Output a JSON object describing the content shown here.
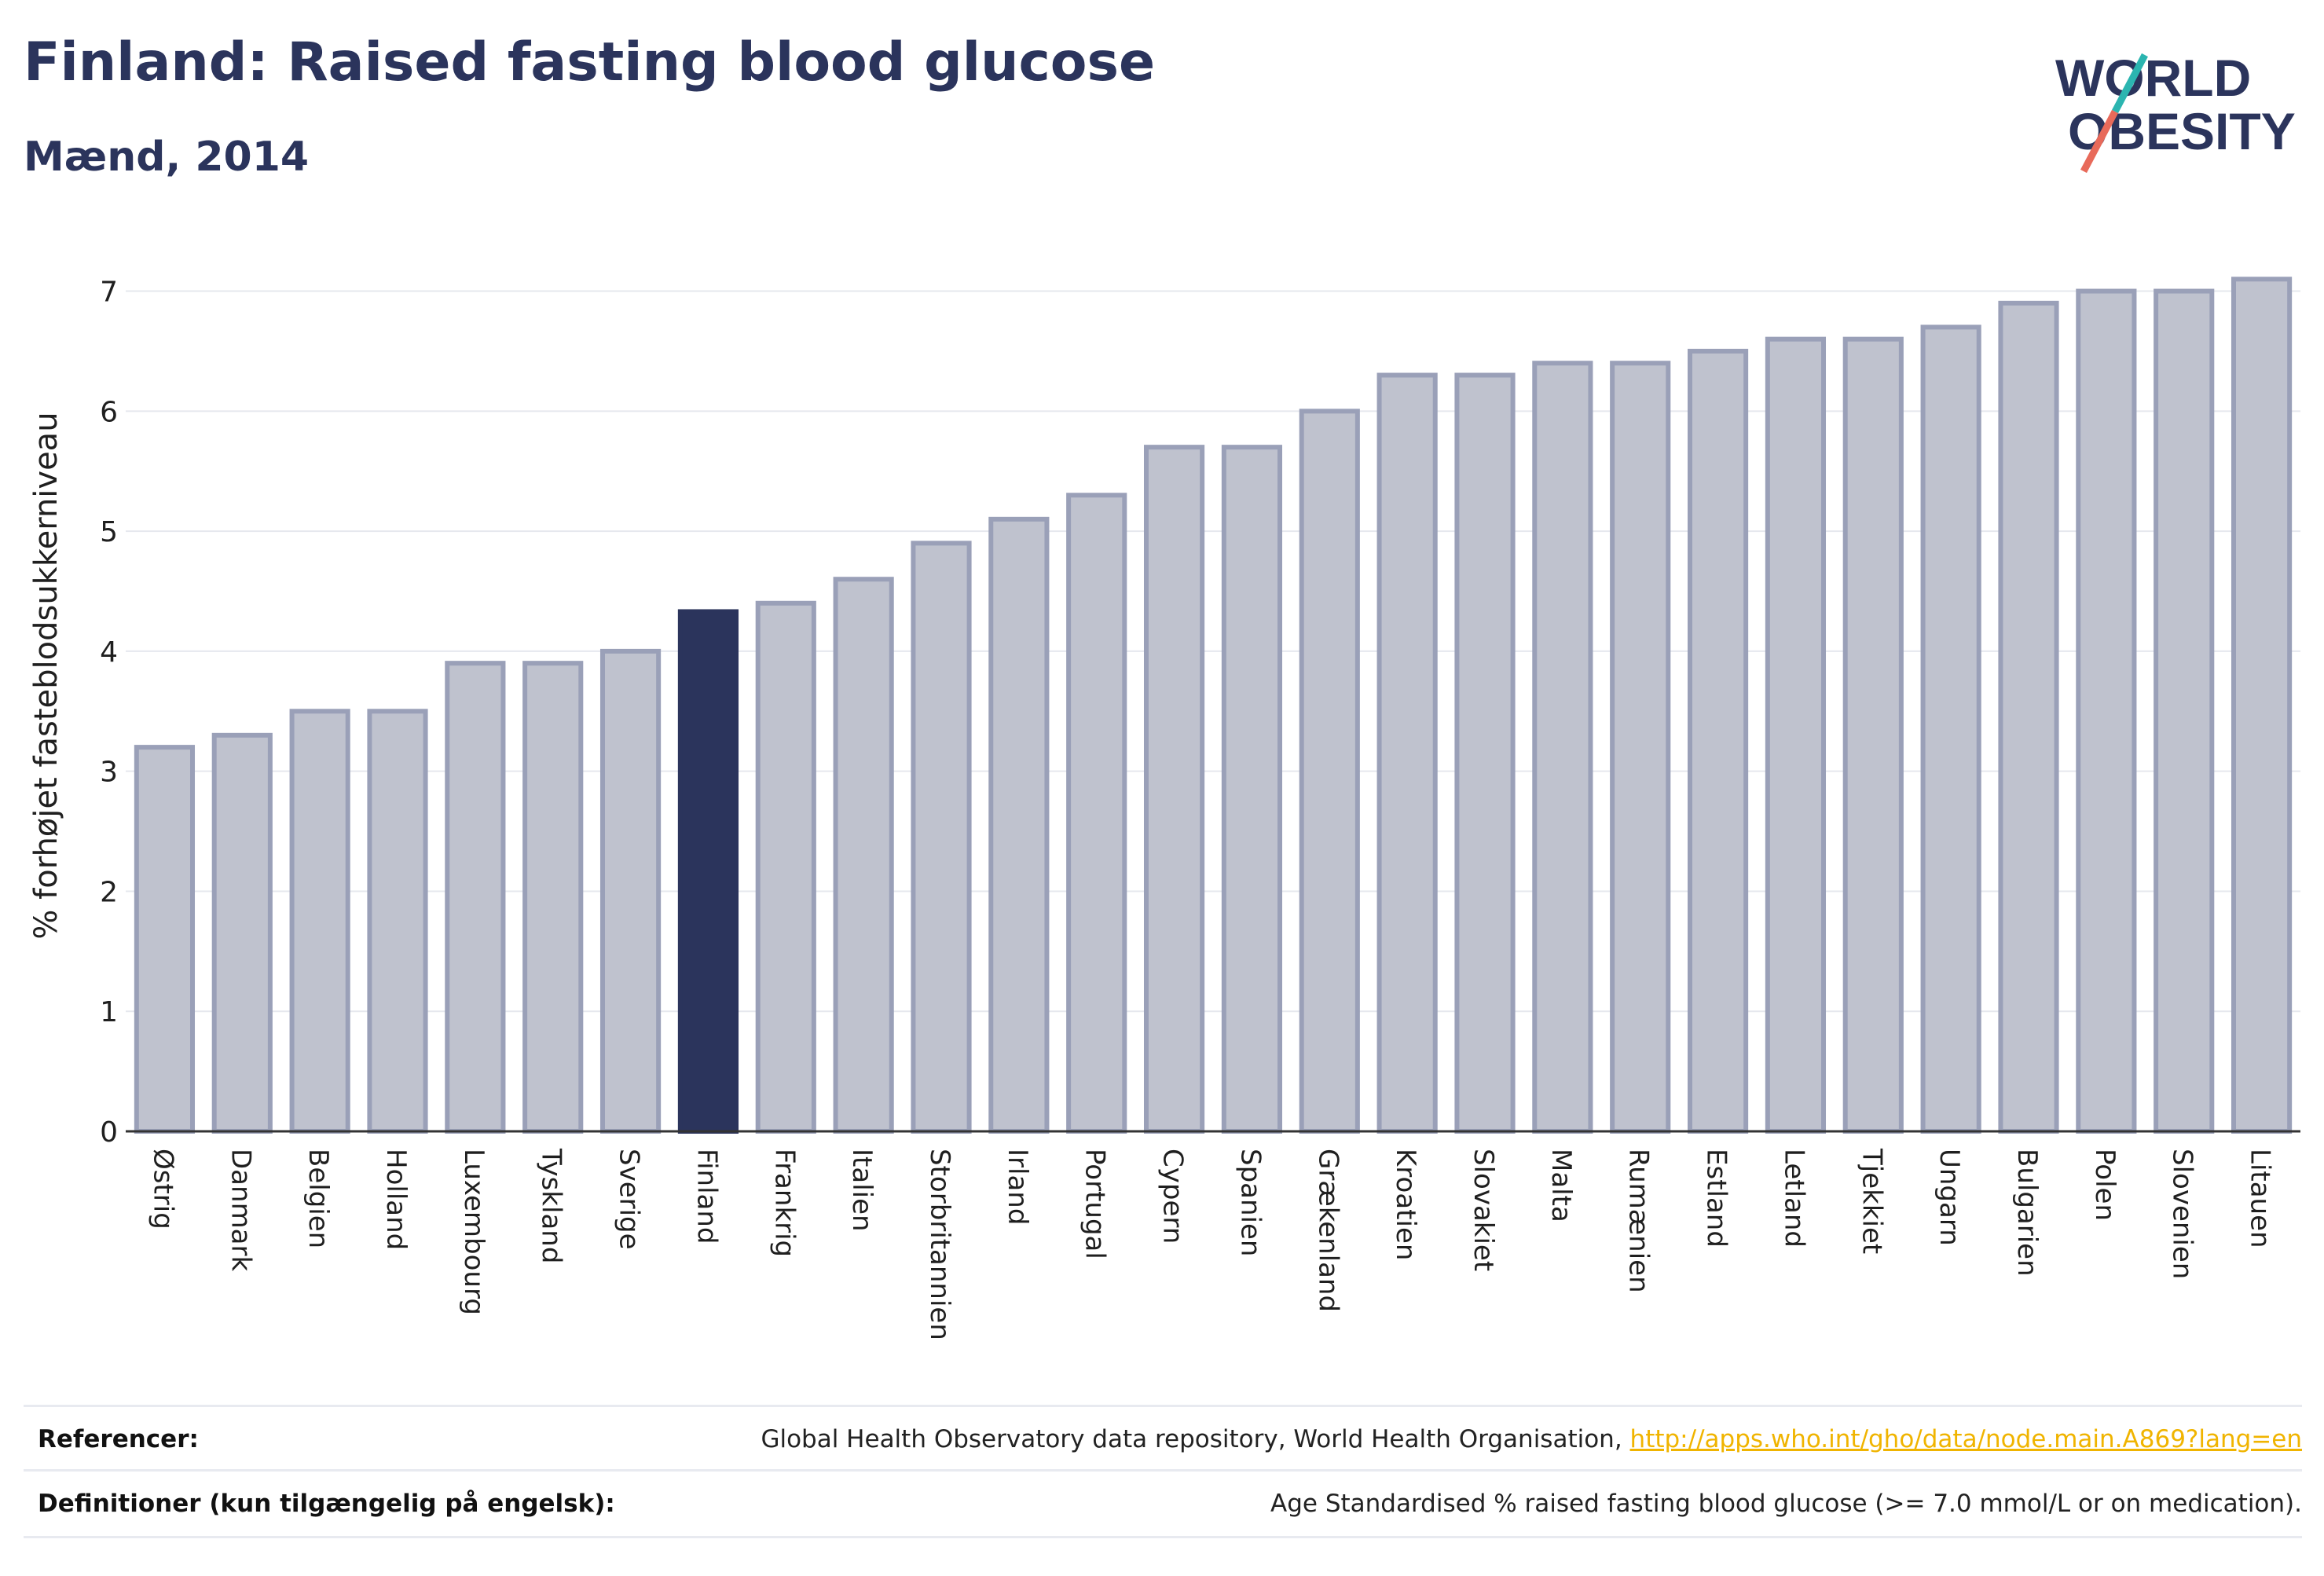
{
  "header": {
    "title": "Finland: Raised fasting blood glucose",
    "subtitle": "Mænd, 2014"
  },
  "logo": {
    "line1": "WORLD",
    "line2": "OBESITY",
    "name": "world-obesity-logo"
  },
  "colors": {
    "bar": "#bfc2ce",
    "bar_edge": "#9aa0b8",
    "highlight": "#2b345c",
    "text": "#2b345c",
    "link": "#f0b400"
  },
  "chart_data": {
    "type": "bar",
    "title": "Finland: Raised fasting blood glucose",
    "subtitle": "Mænd, 2014",
    "xlabel": "",
    "ylabel": "% forhøjet fasteblodsukkerniveau",
    "ylim": [
      0,
      7.2
    ],
    "yticks": [
      0,
      1,
      2,
      3,
      4,
      5,
      6,
      7
    ],
    "grid": true,
    "highlight": "Finland",
    "categories": [
      "Østrig",
      "Danmark",
      "Belgien",
      "Holland",
      "Luxembourg",
      "Tyskland",
      "Sverige",
      "Finland",
      "Frankrig",
      "Italien",
      "Storbritannien",
      "Irland",
      "Portugal",
      "Cypern",
      "Spanien",
      "Grækenland",
      "Kroatien",
      "Slovakiet",
      "Malta",
      "Rumænien",
      "Estland",
      "Letland",
      "Tjekkiet",
      "Ungarn",
      "Bulgarien",
      "Polen",
      "Slovenien",
      "Litauen"
    ],
    "values": [
      3.2,
      3.3,
      3.5,
      3.5,
      3.9,
      3.9,
      4.0,
      4.33,
      4.4,
      4.6,
      4.9,
      5.1,
      5.3,
      5.7,
      5.7,
      6.0,
      6.3,
      6.3,
      6.4,
      6.4,
      6.5,
      6.6,
      6.6,
      6.7,
      6.9,
      7.0,
      7.0,
      7.1
    ]
  },
  "footer": {
    "references_label": "Referencer:",
    "references_text": "Global Health Observatory data repository, World Health Organisation, ",
    "references_link": "http://apps.who.int/gho/data/node.main.A869?lang=en",
    "definitions_label": "Definitioner (kun tilgængelig på engelsk):",
    "definitions_text": "Age Standardised % raised fasting blood glucose (>= 7.0 mmol/L or on medication)."
  }
}
